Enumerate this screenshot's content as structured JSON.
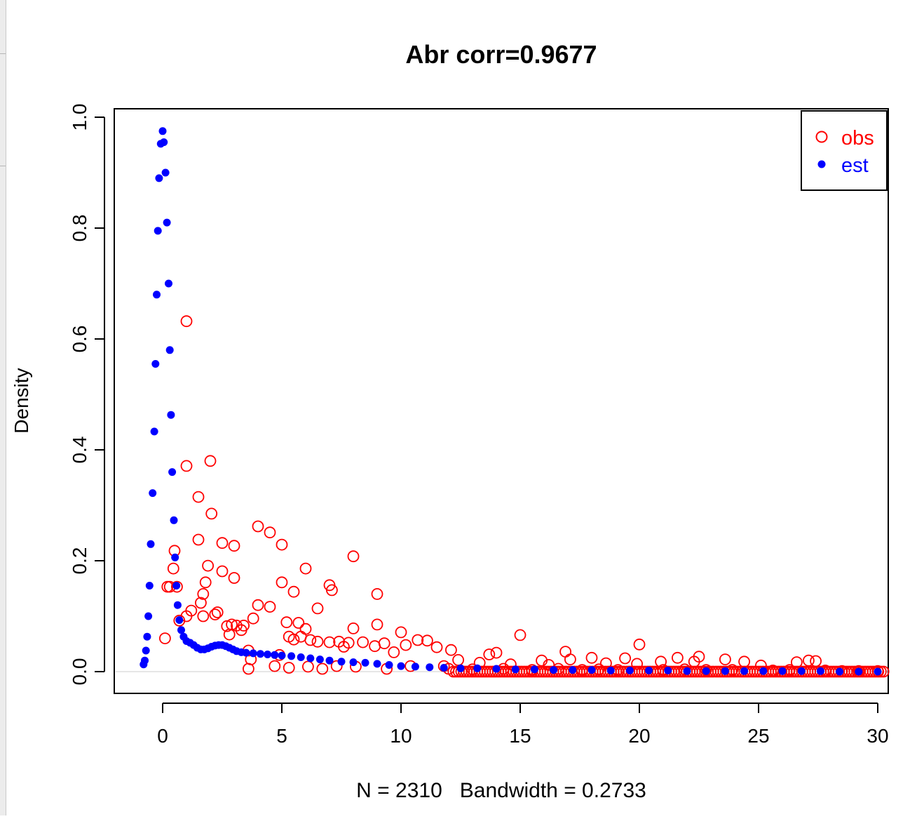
{
  "chart_data": {
    "type": "scatter",
    "title": "Abr corr=0.9677",
    "xlabel": "N = 2310   Bandwidth = 0.2733",
    "ylabel": "Density",
    "xlim": [
      -2,
      30.5
    ],
    "ylim": [
      -0.04,
      1.02
    ],
    "x_ticks": [
      0,
      5,
      10,
      15,
      20,
      25,
      30
    ],
    "x_tick_labels": [
      "0",
      "5",
      "10",
      "15",
      "20",
      "25",
      "30"
    ],
    "y_ticks": [
      0.0,
      0.2,
      0.4,
      0.6,
      0.8,
      1.0
    ],
    "y_tick_labels": [
      "0.0",
      "0.2",
      "0.4",
      "0.6",
      "0.8",
      "1.0"
    ],
    "grid": false,
    "legend": {
      "position": "top-right",
      "entries": [
        {
          "label": "obs",
          "marker": "open-circle",
          "color": "#ff0000"
        },
        {
          "label": "est",
          "marker": "filled-circle",
          "color": "#0000ff"
        }
      ]
    },
    "series": [
      {
        "name": "est",
        "marker": "filled-circle",
        "color": "#0000ff",
        "points": [
          [
            -0.8,
            0.013
          ],
          [
            -0.75,
            0.02
          ],
          [
            -0.7,
            0.038
          ],
          [
            -0.65,
            0.063
          ],
          [
            -0.6,
            0.1
          ],
          [
            -0.55,
            0.155
          ],
          [
            -0.5,
            0.23
          ],
          [
            -0.42,
            0.322
          ],
          [
            -0.35,
            0.433
          ],
          [
            -0.3,
            0.555
          ],
          [
            -0.25,
            0.68
          ],
          [
            -0.2,
            0.795
          ],
          [
            -0.15,
            0.89
          ],
          [
            -0.08,
            0.952
          ],
          [
            0.0,
            0.975
          ],
          [
            0.05,
            0.955
          ],
          [
            0.12,
            0.9
          ],
          [
            0.18,
            0.81
          ],
          [
            0.25,
            0.7
          ],
          [
            0.3,
            0.58
          ],
          [
            0.35,
            0.463
          ],
          [
            0.4,
            0.36
          ],
          [
            0.47,
            0.273
          ],
          [
            0.52,
            0.206
          ],
          [
            0.58,
            0.155
          ],
          [
            0.63,
            0.12
          ],
          [
            0.7,
            0.093
          ],
          [
            0.78,
            0.075
          ],
          [
            0.88,
            0.063
          ],
          [
            1.0,
            0.055
          ],
          [
            1.15,
            0.052
          ],
          [
            1.3,
            0.048
          ],
          [
            1.45,
            0.043
          ],
          [
            1.6,
            0.04
          ],
          [
            1.75,
            0.04
          ],
          [
            1.9,
            0.042
          ],
          [
            2.05,
            0.045
          ],
          [
            2.2,
            0.047
          ],
          [
            2.35,
            0.048
          ],
          [
            2.5,
            0.048
          ],
          [
            2.65,
            0.046
          ],
          [
            2.8,
            0.043
          ],
          [
            2.95,
            0.04
          ],
          [
            3.1,
            0.037
          ],
          [
            3.3,
            0.035
          ],
          [
            3.5,
            0.034
          ],
          [
            3.8,
            0.033
          ],
          [
            4.1,
            0.032
          ],
          [
            4.4,
            0.031
          ],
          [
            4.7,
            0.03
          ],
          [
            5.0,
            0.029
          ],
          [
            5.4,
            0.028
          ],
          [
            5.8,
            0.026
          ],
          [
            6.2,
            0.024
          ],
          [
            6.6,
            0.022
          ],
          [
            7.0,
            0.02
          ],
          [
            7.5,
            0.018
          ],
          [
            8.0,
            0.017
          ],
          [
            8.5,
            0.016
          ],
          [
            9.0,
            0.014
          ],
          [
            9.5,
            0.012
          ],
          [
            10.0,
            0.01
          ],
          [
            10.6,
            0.009
          ],
          [
            11.2,
            0.008
          ],
          [
            11.8,
            0.007
          ],
          [
            12.5,
            0.006
          ],
          [
            13.2,
            0.006
          ],
          [
            14.0,
            0.005
          ],
          [
            14.8,
            0.004
          ],
          [
            15.6,
            0.004
          ],
          [
            16.4,
            0.003
          ],
          [
            17.2,
            0.003
          ],
          [
            18.0,
            0.003
          ],
          [
            18.8,
            0.002
          ],
          [
            19.6,
            0.002
          ],
          [
            20.4,
            0.002
          ],
          [
            21.2,
            0.002
          ],
          [
            22.0,
            0.001
          ],
          [
            22.8,
            0.001
          ],
          [
            23.6,
            0.001
          ],
          [
            24.4,
            0.001
          ],
          [
            25.2,
            0.001
          ],
          [
            26.0,
            0.001
          ],
          [
            26.8,
            0.001
          ],
          [
            27.6,
            0.001
          ],
          [
            28.4,
            0.0
          ],
          [
            29.2,
            0.0
          ],
          [
            30.0,
            0.0
          ]
        ]
      },
      {
        "name": "obs",
        "marker": "open-circle",
        "color": "#ff0000",
        "points": [
          [
            1.0,
            0.632
          ],
          [
            1.0,
            0.371
          ],
          [
            2.0,
            0.38
          ],
          [
            1.5,
            0.315
          ],
          [
            2.05,
            0.285
          ],
          [
            4.0,
            0.262
          ],
          [
            4.5,
            0.251
          ],
          [
            1.5,
            0.238
          ],
          [
            2.5,
            0.232
          ],
          [
            5.0,
            0.229
          ],
          [
            3.0,
            0.227
          ],
          [
            0.5,
            0.218
          ],
          [
            8.0,
            0.208
          ],
          [
            1.9,
            0.191
          ],
          [
            0.45,
            0.186
          ],
          [
            6.0,
            0.186
          ],
          [
            2.5,
            0.181
          ],
          [
            3.0,
            0.169
          ],
          [
            1.8,
            0.161
          ],
          [
            5.0,
            0.161
          ],
          [
            0.2,
            0.153
          ],
          [
            0.3,
            0.153
          ],
          [
            0.6,
            0.153
          ],
          [
            7.0,
            0.156
          ],
          [
            7.1,
            0.147
          ],
          [
            5.5,
            0.144
          ],
          [
            9.0,
            0.14
          ],
          [
            1.7,
            0.14
          ],
          [
            1.6,
            0.124
          ],
          [
            4.0,
            0.12
          ],
          [
            4.5,
            0.117
          ],
          [
            6.5,
            0.114
          ],
          [
            1.2,
            0.11
          ],
          [
            2.3,
            0.107
          ],
          [
            2.2,
            0.103
          ],
          [
            1.0,
            0.1
          ],
          [
            1.7,
            0.1
          ],
          [
            3.8,
            0.096
          ],
          [
            0.7,
            0.092
          ],
          [
            5.2,
            0.089
          ],
          [
            5.7,
            0.088
          ],
          [
            9.0,
            0.085
          ],
          [
            2.9,
            0.085
          ],
          [
            3.1,
            0.083
          ],
          [
            3.4,
            0.083
          ],
          [
            2.7,
            0.082
          ],
          [
            8.0,
            0.078
          ],
          [
            6.0,
            0.077
          ],
          [
            3.3,
            0.075
          ],
          [
            10.0,
            0.071
          ],
          [
            2.8,
            0.067
          ],
          [
            15.0,
            0.066
          ],
          [
            5.3,
            0.063
          ],
          [
            5.8,
            0.063
          ],
          [
            5.5,
            0.058
          ],
          [
            6.2,
            0.057
          ],
          [
            10.7,
            0.057
          ],
          [
            11.1,
            0.056
          ],
          [
            0.1,
            0.06
          ],
          [
            6.5,
            0.054
          ],
          [
            7.4,
            0.054
          ],
          [
            7.0,
            0.053
          ],
          [
            7.8,
            0.052
          ],
          [
            8.4,
            0.053
          ],
          [
            9.3,
            0.051
          ],
          [
            20.0,
            0.049
          ],
          [
            10.2,
            0.048
          ],
          [
            8.9,
            0.046
          ],
          [
            7.6,
            0.045
          ],
          [
            11.5,
            0.044
          ],
          [
            12.1,
            0.039
          ],
          [
            3.6,
            0.038
          ],
          [
            16.9,
            0.036
          ],
          [
            9.7,
            0.035
          ],
          [
            14.0,
            0.034
          ],
          [
            13.7,
            0.031
          ],
          [
            4.9,
            0.03
          ],
          [
            22.5,
            0.027
          ],
          [
            21.6,
            0.025
          ],
          [
            18.0,
            0.025
          ],
          [
            19.4,
            0.024
          ],
          [
            3.7,
            0.022
          ],
          [
            23.6,
            0.022
          ],
          [
            17.1,
            0.022
          ],
          [
            12.4,
            0.021
          ],
          [
            15.9,
            0.02
          ],
          [
            24.4,
            0.018
          ],
          [
            20.9,
            0.018
          ],
          [
            22.3,
            0.018
          ],
          [
            26.6,
            0.017
          ],
          [
            27.1,
            0.02
          ],
          [
            27.4,
            0.019
          ],
          [
            13.3,
            0.016
          ],
          [
            18.6,
            0.015
          ],
          [
            19.9,
            0.014
          ],
          [
            14.6,
            0.013
          ],
          [
            16.2,
            0.012
          ],
          [
            25.1,
            0.011
          ],
          [
            11.8,
            0.01
          ],
          [
            10.4,
            0.01
          ],
          [
            9.4,
            0.005
          ],
          [
            12.0,
            0.005
          ],
          [
            3.6,
            0.005
          ],
          [
            6.7,
            0.005
          ],
          [
            5.3,
            0.007
          ],
          [
            4.7,
            0.01
          ],
          [
            6.1,
            0.009
          ],
          [
            7.3,
            0.01
          ],
          [
            8.1,
            0.009
          ],
          [
            13.0,
            0.004
          ],
          [
            14.3,
            0.005
          ],
          [
            15.5,
            0.003
          ],
          [
            16.6,
            0.005
          ],
          [
            17.6,
            0.003
          ],
          [
            18.3,
            0.004
          ],
          [
            19.1,
            0.003
          ],
          [
            21.0,
            0.003
          ],
          [
            21.9,
            0.004
          ],
          [
            22.8,
            0.003
          ],
          [
            23.9,
            0.003
          ],
          [
            25.6,
            0.002
          ],
          [
            26.3,
            0.003
          ],
          [
            27.8,
            0.002
          ],
          [
            28.5,
            0.001
          ],
          [
            29.2,
            0.001
          ],
          [
            30.0,
            0.001
          ]
        ]
      }
    ],
    "baseline_fill": {
      "series": "obs",
      "marker": "open-circle",
      "color": "#ff0000",
      "y": 0.0,
      "x_from": 12.2,
      "x_to": 30.5,
      "step": 0.11
    }
  }
}
